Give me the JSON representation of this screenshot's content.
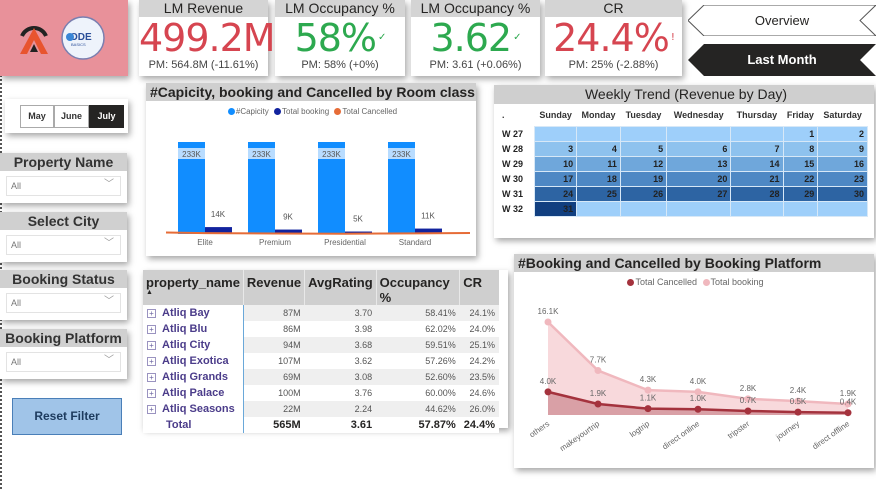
{
  "kpis": [
    {
      "title": "LM Revenue",
      "value": "499.2M",
      "indicator": "!",
      "status": "bad",
      "pm": "PM: 564.8M (-11.61%)"
    },
    {
      "title": "LM Occupancy %",
      "value": "58%",
      "indicator": "✓",
      "status": "good",
      "pm": "PM: 58% (+0%)"
    },
    {
      "title": "LM Occupancy %",
      "value": "3.62",
      "indicator": "✓",
      "status": "good",
      "pm": "PM: 3.61 (+0.06%)"
    },
    {
      "title": "CR",
      "value": "24.4%",
      "indicator": "!",
      "status": "bad",
      "pm": "PM: 25% (-2.88%)"
    }
  ],
  "logo": {
    "brand2": "CODE BASICS"
  },
  "nav": {
    "overview": "Overview",
    "last_month": "Last Month"
  },
  "months": [
    "May",
    "June",
    "July"
  ],
  "selected_month": "July",
  "slicers": [
    {
      "label": "Property Name",
      "value": "All"
    },
    {
      "label": "Select City",
      "value": "All"
    },
    {
      "label": "Booking Status",
      "value": "All"
    },
    {
      "label": "Booking Platform",
      "value": "All"
    }
  ],
  "reset_label": "Reset Filter",
  "colors": {
    "capacity": "#118dff",
    "booking": "#12239e",
    "cancelled": "#e66c37",
    "line_cancel": "#a4323d",
    "line_booking": "#f0b8be",
    "bad": "#d64550",
    "good": "#2da94f"
  },
  "room_chart": {
    "title": "#Capicity, booking and Cancelled by Room class",
    "chart_data": {
      "type": "bar",
      "categories": [
        "Elite",
        "Premium",
        "Presidential",
        "Standard"
      ],
      "series": [
        {
          "name": "#Capicity",
          "values": [
            233,
            233,
            233,
            233
          ],
          "labels": [
            "233K",
            "233K",
            "233K",
            "233K"
          ]
        },
        {
          "name": "Total booking",
          "values": [
            14,
            9,
            5,
            11
          ],
          "labels": [
            "14K",
            "9K",
            "5K",
            "11K"
          ]
        },
        {
          "name": "Total Cancelled",
          "values": [
            3.5,
            2.2,
            1.3,
            2.7
          ]
        }
      ],
      "legend": "top"
    }
  },
  "weekly": {
    "title": "Weekly Trend (Revenue by Day)",
    "corner": ".",
    "days": [
      "Sunday",
      "Monday",
      "Tuesday",
      "Wednesday",
      "Thursday",
      "Friday",
      "Saturday"
    ],
    "weeks": [
      {
        "label": "W 27",
        "cells": [
          "",
          "",
          "",
          "",
          "",
          "1",
          "2"
        ]
      },
      {
        "label": "W 28",
        "cells": [
          "3",
          "4",
          "5",
          "6",
          "7",
          "8",
          "9"
        ]
      },
      {
        "label": "W 29",
        "cells": [
          "10",
          "11",
          "12",
          "13",
          "14",
          "15",
          "16"
        ]
      },
      {
        "label": "W 30",
        "cells": [
          "17",
          "18",
          "19",
          "20",
          "21",
          "22",
          "23"
        ]
      },
      {
        "label": "W 31",
        "cells": [
          "24",
          "25",
          "26",
          "27",
          "28",
          "29",
          "30"
        ]
      },
      {
        "label": "W 32",
        "cells": [
          "31",
          "",
          "",
          "",
          "",
          "",
          ""
        ]
      }
    ],
    "week_colors": [
      "#9ecffa",
      "#8ec2ee",
      "#6fa7db",
      "#4e88c4",
      "#2d64a3",
      "#9ecffa"
    ],
    "highlight_color": "#113f80"
  },
  "table": {
    "headers": [
      "property_name",
      "Revenue",
      "AvgRating",
      "Occupancy %",
      "CR"
    ],
    "rows": [
      [
        "Atliq Bay",
        "87M",
        "3.70",
        "58.41%",
        "24.1%"
      ],
      [
        "Atliq Blu",
        "86M",
        "3.98",
        "62.02%",
        "24.0%"
      ],
      [
        "Atliq City",
        "94M",
        "3.68",
        "59.51%",
        "25.1%"
      ],
      [
        "Atliq Exotica",
        "107M",
        "3.62",
        "57.26%",
        "24.2%"
      ],
      [
        "Atliq Grands",
        "69M",
        "3.08",
        "52.60%",
        "23.5%"
      ],
      [
        "Atliq Palace",
        "100M",
        "3.76",
        "60.00%",
        "24.6%"
      ],
      [
        "Atliq Seasons",
        "22M",
        "2.24",
        "44.62%",
        "26.0%"
      ]
    ],
    "total": [
      "Total",
      "565M",
      "3.61",
      "57.87%",
      "24.4%"
    ]
  },
  "platform_chart": {
    "title": "#Booking and Cancelled by Booking Platform",
    "chart_data": {
      "type": "area",
      "categories": [
        "others",
        "makeyourtrip",
        "logtrip",
        "direct online",
        "tripster",
        "journey",
        "direct offline"
      ],
      "series": [
        {
          "name": "Total Cancelled",
          "values": [
            4.0,
            1.9,
            1.1,
            1.0,
            0.7,
            0.5,
            0.4
          ],
          "labels": [
            "4.0K",
            "1.9K",
            "1.1K",
            "1.0K",
            "0.7K",
            "0.5K",
            "0.4K"
          ]
        },
        {
          "name": "Total booking",
          "values": [
            16.1,
            7.7,
            4.3,
            4.0,
            2.8,
            2.4,
            1.9
          ],
          "labels": [
            "16.1K",
            "7.7K",
            "4.3K",
            "4.0K",
            "2.8K",
            "2.4K",
            "1.9K"
          ]
        }
      ],
      "legend": "top"
    }
  }
}
